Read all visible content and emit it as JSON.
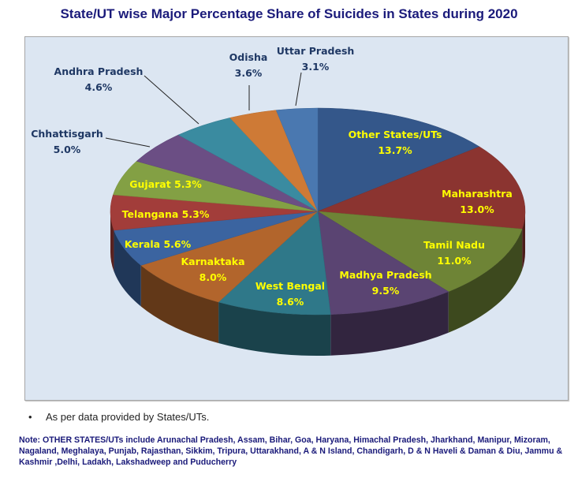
{
  "chart_data": {
    "type": "pie",
    "style": "3d-exploded-none",
    "title": "State/UT wise Major Percentage Share of Suicides in States during 2020",
    "start": "top",
    "direction": "clockwise",
    "slices": [
      {
        "name": "Other States/UTs",
        "value": 13.7,
        "label": "13.7%",
        "color": "#34578a",
        "label_color": "#ffff00",
        "label_style": "inside-two-line"
      },
      {
        "name": "Maharashtra",
        "value": 13.0,
        "label": "13.0%",
        "color": "#8b3430",
        "label_color": "#ffff00",
        "label_style": "inside-two-line"
      },
      {
        "name": "Tamil Nadu",
        "value": 11.0,
        "label": "11.0%",
        "color": "#6e8436",
        "label_color": "#ffff00",
        "label_style": "inside-two-line"
      },
      {
        "name": "Madhya Pradesh",
        "value": 9.5,
        "label": "9.5%",
        "color": "#5a4472",
        "label_color": "#ffff00",
        "label_style": "inside-two-line"
      },
      {
        "name": "West Bengal",
        "value": 8.6,
        "label": "8.6%",
        "color": "#2f7889",
        "label_color": "#ffff00",
        "label_style": "inside-two-line"
      },
      {
        "name": "Karnaktaka",
        "value": 8.0,
        "label": "8.0%",
        "color": "#b2652c",
        "label_color": "#ffff00",
        "label_style": "inside-two-line"
      },
      {
        "name": "Kerala",
        "value": 5.6,
        "label": "5.6%",
        "color": "#3b64a0",
        "label_color": "#ffff00",
        "label_style": "inside-one-line"
      },
      {
        "name": "Telangana",
        "value": 5.3,
        "label": "5.3%",
        "color": "#a23d3a",
        "label_color": "#ffff00",
        "label_style": "inside-one-line"
      },
      {
        "name": "Gujarat",
        "value": 5.3,
        "label": "5.3%",
        "color": "#83a044",
        "label_color": "#ffff00",
        "label_style": "inside-one-line"
      },
      {
        "name": "Chhattisgarh",
        "value": 5.0,
        "label": "5.0%",
        "color": "#6b4e84",
        "label_color": "#1f3864",
        "label_style": "outside-leader"
      },
      {
        "name": "Andhra Pradesh",
        "value": 4.6,
        "label": "4.6%",
        "color": "#3a8ba0",
        "label_color": "#1f3864",
        "label_style": "outside-leader"
      },
      {
        "name": "Odisha",
        "value": 3.6,
        "label": "3.6%",
        "color": "#ce7a36",
        "label_color": "#1f3864",
        "label_style": "outside-leader"
      },
      {
        "name": "Uttar Pradesh",
        "value": 3.1,
        "label": "3.1%",
        "color": "#4a78b0",
        "label_color": "#1f3864",
        "label_style": "outside-leader"
      }
    ],
    "legend": "none",
    "background": "#dce6f2"
  },
  "footnote": {
    "bullet": "•",
    "text": "As per data provided by States/UTs."
  },
  "note": "Note: OTHER STATES/UTs include Arunachal Pradesh, Assam, Bihar, Goa, Haryana, Himachal Pradesh, Jharkhand, Manipur, Mizoram, Nagaland, Meghalaya, Punjab, Rajasthan, Sikkim, Tripura, Uttarakhand, A & N Island, Chandigarh, D & N Haveli & Daman & Diu, Jammu & Kashmir ,Delhi, Ladakh, Lakshadweep and Puducherry"
}
